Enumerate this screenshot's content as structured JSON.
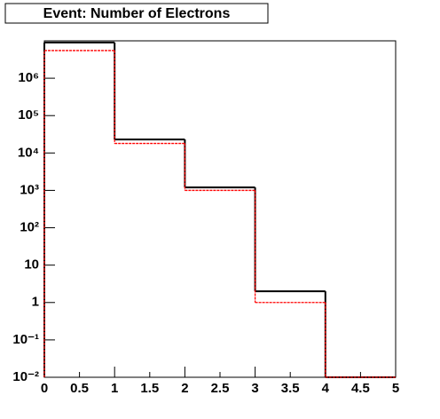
{
  "chart_data": {
    "type": "histogram",
    "title": "Event: Number of Electrons",
    "bins": [
      0,
      1,
      2,
      3,
      4,
      5
    ],
    "series": [
      {
        "name": "black",
        "color": "#000000",
        "values": [
          9000000,
          23000,
          1200,
          2,
          0
        ]
      },
      {
        "name": "red",
        "color": "#ff0000",
        "values": [
          5500000,
          18000,
          1000,
          1,
          0
        ]
      }
    ],
    "log_scale_y": true,
    "xlim": [
      0,
      5
    ],
    "xticks": [
      0,
      0.5,
      1,
      1.5,
      2,
      2.5,
      3,
      3.5,
      4,
      4.5,
      5
    ],
    "ylim": [
      0.01,
      10000000
    ],
    "yticks": [
      {
        "value": 0.01,
        "label": "10⁻²"
      },
      {
        "value": 0.1,
        "label": "10⁻¹"
      },
      1,
      10,
      {
        "value": 100,
        "label": "10²"
      },
      {
        "value": 1000,
        "label": "10³"
      },
      {
        "value": 10000,
        "label": "10⁴"
      },
      {
        "value": 100000,
        "label": "10⁵"
      },
      {
        "value": 1000000,
        "label": "10⁶"
      }
    ]
  }
}
